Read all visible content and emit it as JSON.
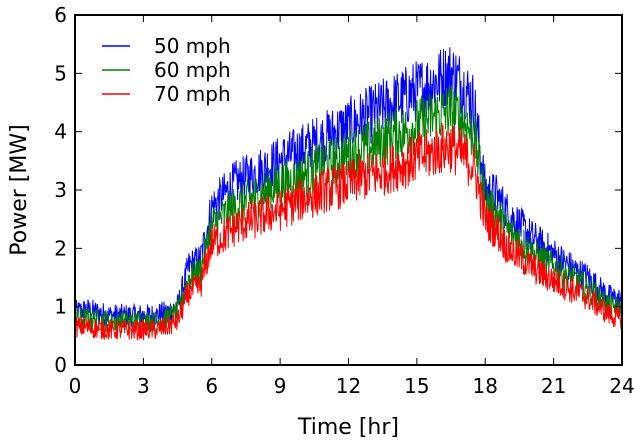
{
  "chart_data": {
    "type": "line",
    "title": "",
    "xlabel": "Time [hr]",
    "ylabel": "Power [MW]",
    "xlim": [
      0,
      24
    ],
    "ylim": [
      0,
      6
    ],
    "xticks": [
      0,
      3,
      6,
      9,
      12,
      15,
      18,
      21,
      24
    ],
    "yticks": [
      0,
      1,
      2,
      3,
      4,
      5,
      6
    ],
    "grid": false,
    "legend_position": "top-left",
    "x": [
      0,
      0.5,
      1,
      1.5,
      2,
      2.5,
      3,
      3.5,
      4,
      4.5,
      5,
      5.5,
      6,
      6.5,
      7,
      7.5,
      8,
      8.5,
      9,
      9.5,
      10,
      10.5,
      11,
      11.5,
      12,
      12.5,
      13,
      13.5,
      14,
      14.5,
      15,
      15.5,
      16,
      16.5,
      17,
      17.5,
      18,
      18.5,
      19,
      19.5,
      20,
      20.5,
      21,
      21.5,
      22,
      22.5,
      23,
      23.5,
      24
    ],
    "series": [
      {
        "name": "50 mph",
        "color": "#0000ff",
        "values": [
          0.9,
          0.95,
          0.9,
          0.85,
          0.85,
          0.85,
          0.85,
          0.85,
          0.9,
          1.0,
          1.7,
          1.8,
          2.7,
          2.9,
          3.1,
          3.2,
          3.3,
          3.4,
          3.5,
          3.6,
          3.7,
          3.8,
          3.9,
          4.0,
          4.1,
          4.2,
          4.3,
          4.4,
          4.5,
          4.6,
          4.7,
          4.8,
          4.9,
          5.0,
          4.8,
          4.5,
          3.0,
          2.9,
          2.6,
          2.4,
          2.2,
          2.05,
          1.9,
          1.75,
          1.6,
          1.5,
          1.3,
          1.15,
          1.1
        ]
      },
      {
        "name": "60 mph",
        "color": "#008000",
        "values": [
          0.8,
          0.8,
          0.78,
          0.75,
          0.75,
          0.75,
          0.75,
          0.75,
          0.8,
          0.9,
          1.5,
          1.6,
          2.4,
          2.55,
          2.7,
          2.8,
          2.9,
          3.0,
          3.1,
          3.15,
          3.25,
          3.35,
          3.45,
          3.5,
          3.6,
          3.7,
          3.75,
          3.85,
          3.95,
          4.0,
          4.1,
          4.2,
          4.3,
          4.35,
          4.2,
          3.95,
          2.8,
          2.6,
          2.3,
          2.15,
          1.95,
          1.8,
          1.7,
          1.55,
          1.45,
          1.3,
          1.15,
          1.0,
          0.95
        ]
      },
      {
        "name": "70 mph",
        "color": "#ff0000",
        "values": [
          0.65,
          0.65,
          0.62,
          0.6,
          0.6,
          0.6,
          0.6,
          0.6,
          0.65,
          0.75,
          1.25,
          1.35,
          2.1,
          2.2,
          2.35,
          2.45,
          2.5,
          2.6,
          2.65,
          2.75,
          2.85,
          2.9,
          3.0,
          3.05,
          3.1,
          3.2,
          3.25,
          3.3,
          3.4,
          3.45,
          3.55,
          3.6,
          3.7,
          3.75,
          3.6,
          3.4,
          2.5,
          2.3,
          2.0,
          1.85,
          1.7,
          1.55,
          1.45,
          1.35,
          1.25,
          1.15,
          1.0,
          0.85,
          0.8
        ]
      }
    ]
  }
}
